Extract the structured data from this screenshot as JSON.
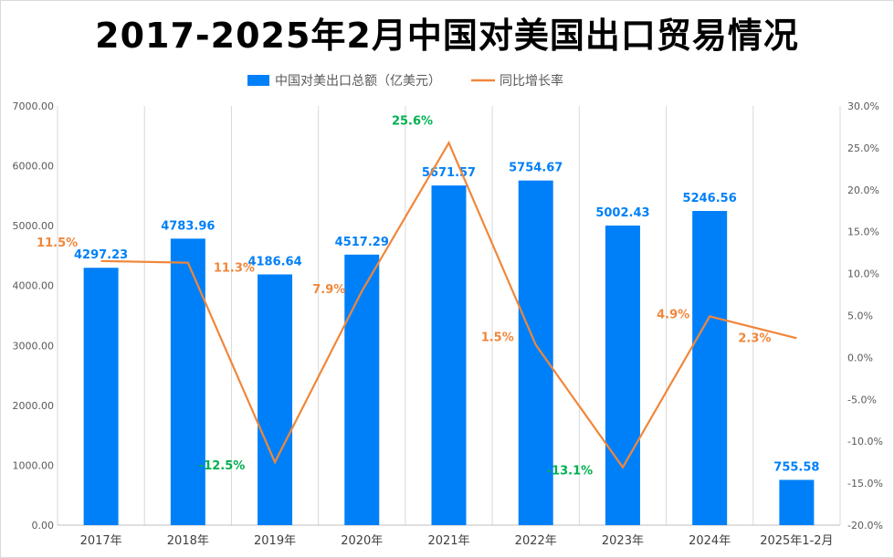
{
  "chart_data": {
    "type": "bar+line",
    "title": "2017-2025年2月中国对美国出口贸易情况",
    "categories": [
      "2017年",
      "2018年",
      "2019年",
      "2020年",
      "2021年",
      "2022年",
      "2023年",
      "2024年",
      "2025年1-2月"
    ],
    "series": [
      {
        "name": "中国对美出口总额（亿美元）",
        "type": "bar",
        "axis": "left",
        "color": "#0080f8",
        "values": [
          4297.23,
          4783.96,
          4186.64,
          4517.29,
          5671.57,
          5754.67,
          5002.43,
          5246.56,
          755.58
        ],
        "labels": [
          "4297.23",
          "4783.96",
          "4186.64",
          "4517.29",
          "5671.57",
          "5754.67",
          "5002.43",
          "5246.56",
          "755.58"
        ]
      },
      {
        "name": "同比增长率",
        "type": "line",
        "axis": "right",
        "color": "#f0873a",
        "values": [
          11.5,
          11.3,
          -12.5,
          7.9,
          25.6,
          1.5,
          -13.1,
          4.9,
          2.3
        ],
        "labels": [
          "11.5%",
          "11.3%",
          "-12.5%",
          "7.9%",
          "25.6%",
          "1.5%",
          "-13.1%",
          "4.9%",
          "2.3%"
        ]
      }
    ],
    "left_axis": {
      "range": [
        0,
        7000
      ],
      "ticks": [
        "0.00",
        "1000.00",
        "2000.00",
        "3000.00",
        "4000.00",
        "5000.00",
        "6000.00",
        "7000.00"
      ]
    },
    "right_axis": {
      "range": [
        -20,
        30
      ],
      "ticks": [
        "-20.0%",
        "-15.0%",
        "-10.0%",
        "-5.0%",
        "0.0%",
        "5.0%",
        "10.0%",
        "15.0%",
        "20.0%",
        "25.0%",
        "30.0%"
      ]
    },
    "legend_position": "top-center",
    "grid": "vertical",
    "colors": {
      "positive_label": "#f0873a",
      "negative_label": "#00b050",
      "peak_label": "#00b050",
      "bar_label": "#0080f8"
    }
  }
}
